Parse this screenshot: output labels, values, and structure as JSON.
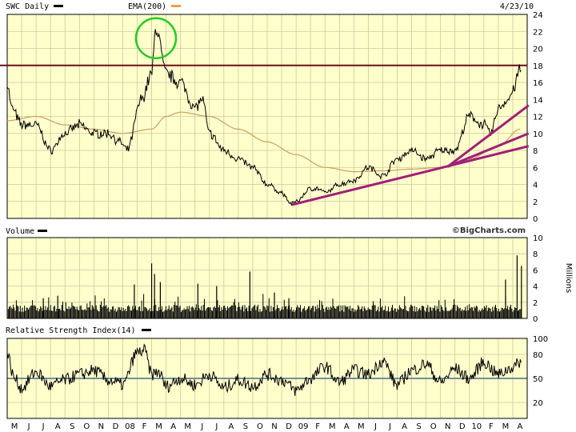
{
  "header": {
    "ticker_label": "SWC Daily",
    "ema_label": "EMA(200)",
    "date": "4/23/10",
    "ticker_swatch_color": "#000000",
    "ema_swatch_color": "#e8a040"
  },
  "colors": {
    "panel_bg": "#ffffcc",
    "grid": "#c8c8a0",
    "price_line": "#000000",
    "ema_line": "#c8a060",
    "resistance": "#6b0f1a",
    "trendlines": "#a0207a",
    "circle": "#22cc22",
    "rsi_mid": "#4a6a8a"
  },
  "volume_panel": {
    "title": "Volume",
    "credit": "©BigCharts.com",
    "unit_label": "Millions"
  },
  "rsi_panel": {
    "title": "Relative Strength Index(14)"
  },
  "chart_data": [
    {
      "type": "line",
      "name": "price",
      "title": "SWC Daily",
      "ylim": [
        0,
        24
      ],
      "yticks": [
        0,
        2,
        4,
        6,
        8,
        10,
        12,
        14,
        16,
        18,
        20,
        22,
        24
      ],
      "x_month_labels": [
        "M",
        "J",
        "J",
        "A",
        "S",
        "O",
        "N",
        "D",
        "08",
        "F",
        "M",
        "A",
        "M",
        "J",
        "J",
        "A",
        "S",
        "O",
        "N",
        "D",
        "09",
        "F",
        "M",
        "A",
        "M",
        "J",
        "J",
        "A",
        "S",
        "O",
        "N",
        "D",
        "10",
        "F",
        "M",
        "A"
      ],
      "series": [
        {
          "name": "SWC Daily",
          "anchors_month_index": [
            0,
            0.3,
            1,
            2,
            3,
            4,
            5,
            6,
            7,
            7.8,
            8.3,
            9.3,
            10,
            10.3,
            11,
            12,
            13,
            13.5,
            14,
            15,
            16,
            17,
            18,
            19,
            19.7,
            20,
            21,
            21.5,
            22,
            23,
            24,
            25,
            26,
            27,
            28,
            29,
            30,
            31,
            32,
            33,
            33.5,
            34,
            34.7,
            35,
            35.5
          ],
          "anchors_value": [
            16,
            13,
            11,
            11,
            8,
            10,
            11,
            10,
            10,
            9,
            8,
            14,
            17,
            22.5,
            17,
            16,
            13,
            14,
            10,
            8,
            7,
            6,
            4,
            3,
            1.7,
            2,
            3.5,
            3.5,
            3,
            4,
            4.5,
            6,
            5,
            7,
            8,
            7,
            8,
            8,
            12,
            11,
            10,
            13,
            14,
            15,
            17.5
          ]
        },
        {
          "name": "EMA(200)",
          "anchors_month_index": [
            0,
            2,
            4,
            6,
            8,
            10,
            11,
            12,
            14,
            16,
            18,
            20,
            22,
            24,
            26,
            28,
            30,
            32,
            34,
            35.5
          ],
          "anchors_value": [
            11.5,
            12,
            11,
            10.5,
            10,
            10.5,
            12,
            12.5,
            12,
            10.5,
            9,
            7.5,
            6,
            5.5,
            5.6,
            5.8,
            6,
            7,
            8.5,
            10.5
          ]
        }
      ],
      "annotations": {
        "resistance_level": 18,
        "circle_center_month_index": 10.3,
        "circle_center_value": 21.2,
        "trendlines": [
          {
            "from_month_index": 19.7,
            "from_value": 1.6,
            "to_month_index": 36.1,
            "to_value": 8.5
          },
          {
            "from_month_index": 30.5,
            "from_value": 6.1,
            "to_month_index": 36.1,
            "to_value": 13.3
          },
          {
            "from_month_index": 30.5,
            "from_value": 6.1,
            "to_month_index": 36.1,
            "to_value": 10.0
          }
        ]
      }
    },
    {
      "type": "bar",
      "name": "volume",
      "title": "Volume",
      "ylabel": "Millions",
      "ylim": [
        0,
        10
      ],
      "yticks": [
        0,
        2,
        4,
        6,
        8,
        10
      ],
      "baseline": 0.8,
      "spikes_month_index": [
        2.5,
        3.5,
        8.8,
        10.0,
        10.2,
        10.6,
        13.2,
        14.5,
        16.8,
        18.5,
        19.5,
        34.5,
        35.3,
        35.6
      ],
      "spikes_value": [
        2.5,
        2.8,
        4.2,
        6.8,
        5.5,
        4.5,
        4.3,
        4.0,
        5.8,
        3.2,
        2.5,
        4.8,
        7.8,
        6.5
      ]
    },
    {
      "type": "line",
      "name": "rsi",
      "title": "Relative Strength Index(14)",
      "ylim": [
        0,
        100
      ],
      "yticks": [
        20,
        50,
        80,
        100
      ],
      "midline": 50,
      "series": [
        {
          "name": "Relative Strength Index(14)",
          "anchors_month_index": [
            0,
            0.5,
            1,
            2,
            3,
            4,
            5,
            6,
            7,
            8,
            9,
            9.5,
            10,
            10.5,
            11,
            12,
            13,
            14,
            15,
            16,
            17,
            18,
            19,
            20,
            21,
            22,
            23,
            24,
            25,
            26,
            27,
            28,
            29,
            30,
            31,
            32,
            33,
            34,
            35,
            35.8
          ],
          "anchors_value": [
            80,
            50,
            38,
            58,
            40,
            48,
            55,
            60,
            48,
            42,
            82,
            85,
            55,
            58,
            40,
            50,
            42,
            55,
            38,
            48,
            40,
            55,
            48,
            35,
            50,
            65,
            45,
            60,
            55,
            72,
            42,
            60,
            68,
            45,
            62,
            50,
            70,
            55,
            64,
            75
          ]
        }
      ]
    }
  ]
}
